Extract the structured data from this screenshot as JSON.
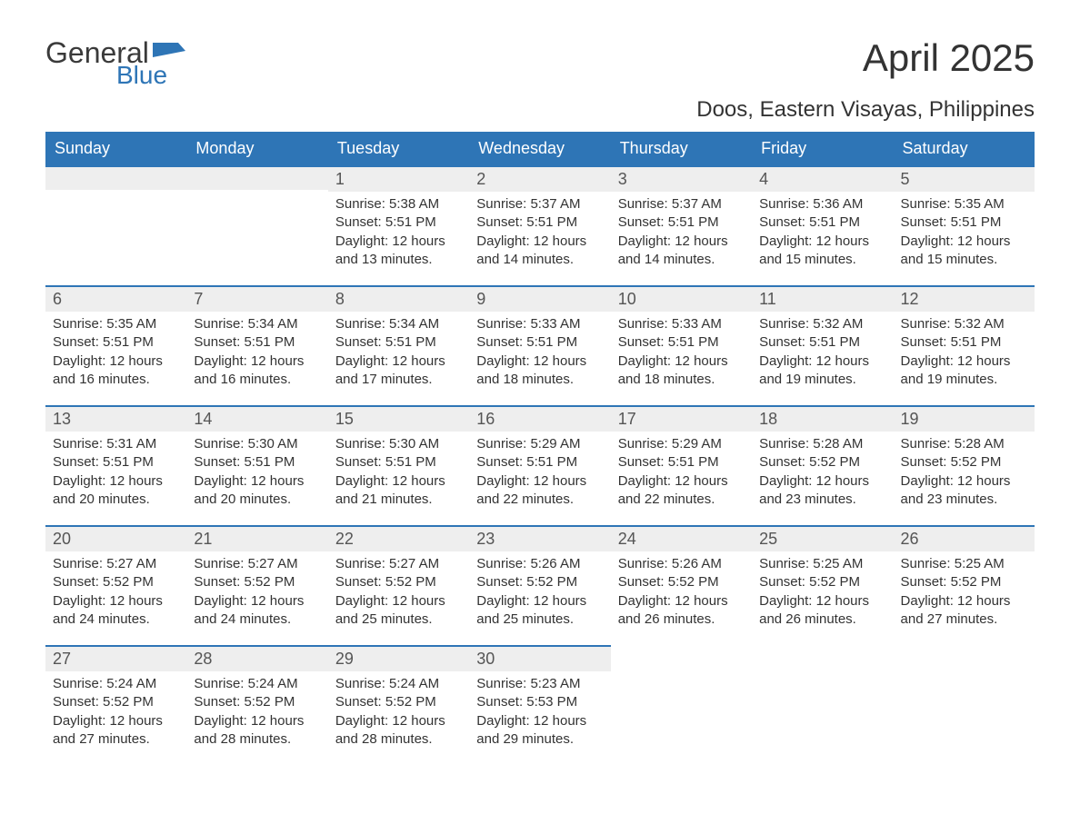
{
  "logo": {
    "general": "General",
    "blue": "Blue",
    "flag_color": "#2e75b6"
  },
  "title": "April 2025",
  "location": "Doos, Eastern Visayas, Philippines",
  "colors": {
    "header_bg": "#2e75b6",
    "daynum_bg": "#eeeeee",
    "daynum_border": "#2e75b6",
    "text": "#333333",
    "weekday_text": "#ffffff"
  },
  "weekdays": [
    "Sunday",
    "Monday",
    "Tuesday",
    "Wednesday",
    "Thursday",
    "Friday",
    "Saturday"
  ],
  "weeks": [
    [
      null,
      null,
      {
        "n": "1",
        "sr": "5:38 AM",
        "ss": "5:51 PM",
        "dl": "12 hours and 13 minutes."
      },
      {
        "n": "2",
        "sr": "5:37 AM",
        "ss": "5:51 PM",
        "dl": "12 hours and 14 minutes."
      },
      {
        "n": "3",
        "sr": "5:37 AM",
        "ss": "5:51 PM",
        "dl": "12 hours and 14 minutes."
      },
      {
        "n": "4",
        "sr": "5:36 AM",
        "ss": "5:51 PM",
        "dl": "12 hours and 15 minutes."
      },
      {
        "n": "5",
        "sr": "5:35 AM",
        "ss": "5:51 PM",
        "dl": "12 hours and 15 minutes."
      }
    ],
    [
      {
        "n": "6",
        "sr": "5:35 AM",
        "ss": "5:51 PM",
        "dl": "12 hours and 16 minutes."
      },
      {
        "n": "7",
        "sr": "5:34 AM",
        "ss": "5:51 PM",
        "dl": "12 hours and 16 minutes."
      },
      {
        "n": "8",
        "sr": "5:34 AM",
        "ss": "5:51 PM",
        "dl": "12 hours and 17 minutes."
      },
      {
        "n": "9",
        "sr": "5:33 AM",
        "ss": "5:51 PM",
        "dl": "12 hours and 18 minutes."
      },
      {
        "n": "10",
        "sr": "5:33 AM",
        "ss": "5:51 PM",
        "dl": "12 hours and 18 minutes."
      },
      {
        "n": "11",
        "sr": "5:32 AM",
        "ss": "5:51 PM",
        "dl": "12 hours and 19 minutes."
      },
      {
        "n": "12",
        "sr": "5:32 AM",
        "ss": "5:51 PM",
        "dl": "12 hours and 19 minutes."
      }
    ],
    [
      {
        "n": "13",
        "sr": "5:31 AM",
        "ss": "5:51 PM",
        "dl": "12 hours and 20 minutes."
      },
      {
        "n": "14",
        "sr": "5:30 AM",
        "ss": "5:51 PM",
        "dl": "12 hours and 20 minutes."
      },
      {
        "n": "15",
        "sr": "5:30 AM",
        "ss": "5:51 PM",
        "dl": "12 hours and 21 minutes."
      },
      {
        "n": "16",
        "sr": "5:29 AM",
        "ss": "5:51 PM",
        "dl": "12 hours and 22 minutes."
      },
      {
        "n": "17",
        "sr": "5:29 AM",
        "ss": "5:51 PM",
        "dl": "12 hours and 22 minutes."
      },
      {
        "n": "18",
        "sr": "5:28 AM",
        "ss": "5:52 PM",
        "dl": "12 hours and 23 minutes."
      },
      {
        "n": "19",
        "sr": "5:28 AM",
        "ss": "5:52 PM",
        "dl": "12 hours and 23 minutes."
      }
    ],
    [
      {
        "n": "20",
        "sr": "5:27 AM",
        "ss": "5:52 PM",
        "dl": "12 hours and 24 minutes."
      },
      {
        "n": "21",
        "sr": "5:27 AM",
        "ss": "5:52 PM",
        "dl": "12 hours and 24 minutes."
      },
      {
        "n": "22",
        "sr": "5:27 AM",
        "ss": "5:52 PM",
        "dl": "12 hours and 25 minutes."
      },
      {
        "n": "23",
        "sr": "5:26 AM",
        "ss": "5:52 PM",
        "dl": "12 hours and 25 minutes."
      },
      {
        "n": "24",
        "sr": "5:26 AM",
        "ss": "5:52 PM",
        "dl": "12 hours and 26 minutes."
      },
      {
        "n": "25",
        "sr": "5:25 AM",
        "ss": "5:52 PM",
        "dl": "12 hours and 26 minutes."
      },
      {
        "n": "26",
        "sr": "5:25 AM",
        "ss": "5:52 PM",
        "dl": "12 hours and 27 minutes."
      }
    ],
    [
      {
        "n": "27",
        "sr": "5:24 AM",
        "ss": "5:52 PM",
        "dl": "12 hours and 27 minutes."
      },
      {
        "n": "28",
        "sr": "5:24 AM",
        "ss": "5:52 PM",
        "dl": "12 hours and 28 minutes."
      },
      {
        "n": "29",
        "sr": "5:24 AM",
        "ss": "5:52 PM",
        "dl": "12 hours and 28 minutes."
      },
      {
        "n": "30",
        "sr": "5:23 AM",
        "ss": "5:53 PM",
        "dl": "12 hours and 29 minutes."
      },
      null,
      null,
      null
    ]
  ],
  "labels": {
    "sunrise": "Sunrise: ",
    "sunset": "Sunset: ",
    "daylight": "Daylight: "
  }
}
